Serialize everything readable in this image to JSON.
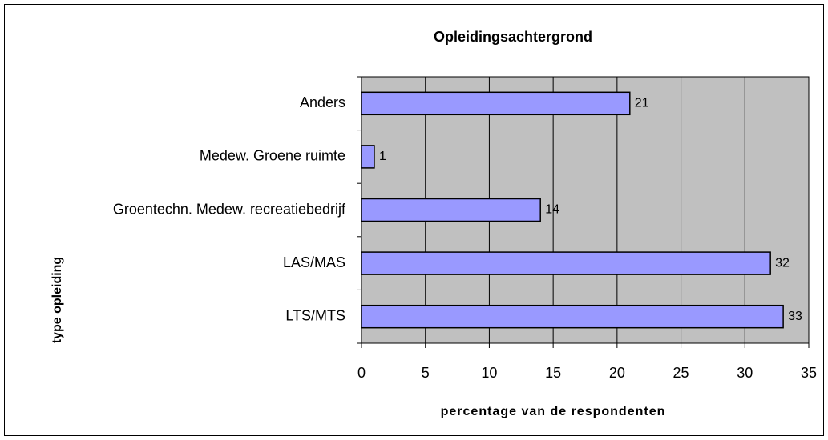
{
  "chart_data": {
    "type": "bar",
    "title": "Opleidingsachtergrond",
    "x_label": "percentage van de respondenten",
    "y_label": "type opleiding",
    "categories": [
      "Anders",
      "Medew. Groene ruimte",
      "Groentechn. Medew. recreatiebedrijf",
      "LAS/MAS",
      "LTS/MTS"
    ],
    "values": [
      21,
      1,
      14,
      32,
      33
    ],
    "color": "#9999ff",
    "xlim": [
      0,
      35
    ],
    "xticks": [
      0,
      5,
      10,
      15,
      20,
      25,
      30,
      35
    ],
    "grid": true
  }
}
